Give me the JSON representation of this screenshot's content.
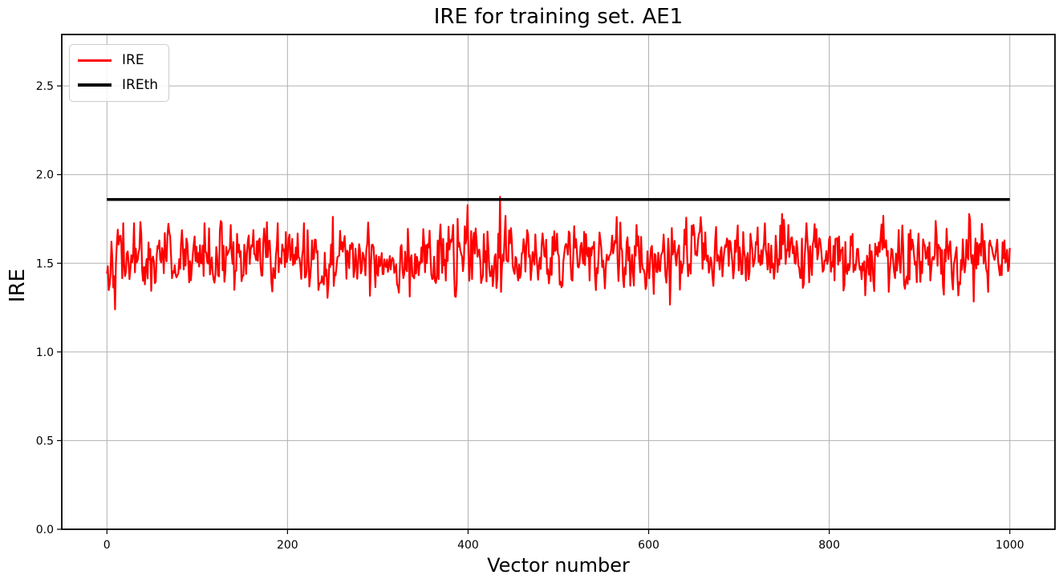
{
  "chart_data": {
    "type": "line",
    "title": "IRE for training set. AE1",
    "xlabel": "Vector number",
    "ylabel": "IRE",
    "xlim": [
      -50,
      1050
    ],
    "ylim": [
      0,
      2.79
    ],
    "xticks": [
      0,
      200,
      400,
      600,
      800,
      1000
    ],
    "xtick_labels": [
      "0",
      "200",
      "400",
      "600",
      "800",
      "1000"
    ],
    "yticks": [
      0.0,
      0.5,
      1.0,
      1.5,
      2.0,
      2.5
    ],
    "ytick_labels": [
      "0.0",
      "0.5",
      "1.0",
      "1.5",
      "2.0",
      "2.5"
    ],
    "grid": true,
    "grid_color": "#b0b0b0",
    "background_color": "#ffffff",
    "spine_color": "#000000",
    "legend_position": "upper-left",
    "x_range": [
      0,
      1000
    ],
    "n_points": 1000,
    "series": [
      {
        "name": "IRE",
        "color": "#ff0000",
        "style": "noisy",
        "mean": 1.53,
        "std": 0.095,
        "min": 1.24,
        "max": 1.875,
        "seed": 42,
        "peak_x": 435
      },
      {
        "name": "IREth",
        "color": "#000000",
        "style": "constant",
        "value": 1.86
      }
    ]
  },
  "legend": {
    "items": [
      {
        "label": "IRE",
        "color": "#ff0000"
      },
      {
        "label": "IREth",
        "color": "#000000"
      }
    ]
  }
}
